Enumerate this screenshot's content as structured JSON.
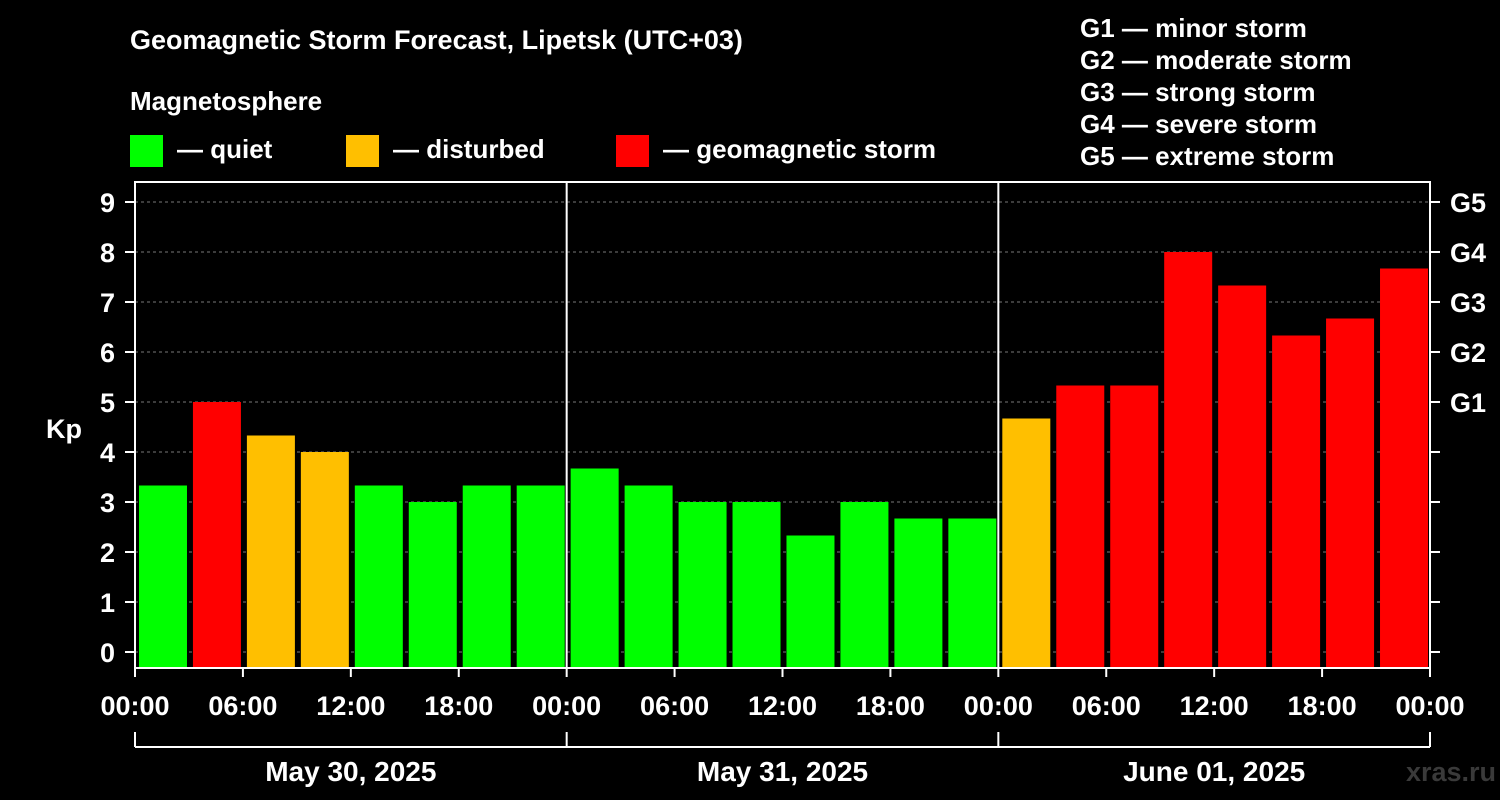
{
  "chart_data": {
    "type": "bar",
    "title": "Geomagnetic Storm Forecast, Lipetsk (UTC+03)",
    "legend_title": "Magnetosphere",
    "legend": [
      {
        "key": "quiet",
        "label": "— quiet",
        "color": "#00ff00"
      },
      {
        "key": "disturbed",
        "label": "— disturbed",
        "color": "#ffbf00"
      },
      {
        "key": "storm",
        "label": "— geomagnetic storm",
        "color": "#ff0000"
      }
    ],
    "g_scale_legend": [
      "G1 — minor storm",
      "G2 — moderate storm",
      "G3 — strong storm",
      "G4 — severe storm",
      "G5 — extreme storm"
    ],
    "ylabel": "Kp",
    "ylim": [
      0,
      9
    ],
    "y_ticks": [
      "0",
      "1",
      "2",
      "3",
      "4",
      "5",
      "6",
      "7",
      "8",
      "9"
    ],
    "g_ticks": [
      {
        "kp": 5,
        "label": "G1"
      },
      {
        "kp": 6,
        "label": "G2"
      },
      {
        "kp": 7,
        "label": "G3"
      },
      {
        "kp": 8,
        "label": "G4"
      },
      {
        "kp": 9,
        "label": "G5"
      }
    ],
    "x_tick_labels": [
      "00:00",
      "06:00",
      "12:00",
      "18:00",
      "00:00",
      "06:00",
      "12:00",
      "18:00",
      "00:00",
      "06:00",
      "12:00",
      "18:00",
      "00:00"
    ],
    "days": [
      "May 30, 2025",
      "May 31, 2025",
      "June 01, 2025"
    ],
    "bars_per_day": 8,
    "values": [
      3.33,
      5.0,
      4.33,
      4.0,
      3.33,
      3.0,
      3.33,
      3.33,
      3.67,
      3.33,
      3.0,
      3.0,
      2.33,
      3.0,
      2.67,
      2.67,
      4.67,
      5.33,
      5.33,
      8.0,
      7.33,
      6.33,
      6.67,
      7.67
    ],
    "levels": [
      "quiet",
      "storm",
      "disturbed",
      "disturbed",
      "quiet",
      "quiet",
      "quiet",
      "quiet",
      "quiet",
      "quiet",
      "quiet",
      "quiet",
      "quiet",
      "quiet",
      "quiet",
      "quiet",
      "disturbed",
      "storm",
      "storm",
      "storm",
      "storm",
      "storm",
      "storm",
      "storm"
    ],
    "grid": true
  },
  "watermark": "xras.ru"
}
